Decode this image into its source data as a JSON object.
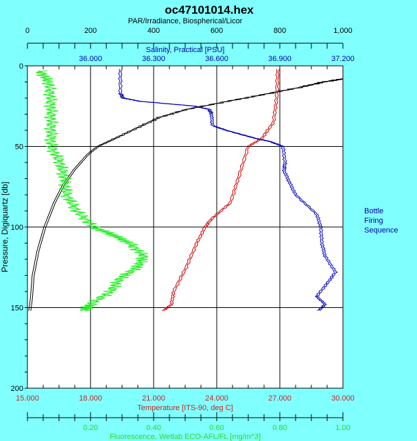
{
  "chart_data": {
    "type": "line",
    "title": "oc47101014.hex",
    "ylabel": "Pressure, Digiquartz [db]",
    "ylim": [
      0,
      200
    ],
    "yticks": [
      "0",
      "50",
      "100",
      "150",
      "200"
    ],
    "grid": true,
    "legend": {
      "lines": [
        "Bottle",
        "Firing",
        "Sequence"
      ],
      "placement": "right"
    },
    "axes": {
      "par": {
        "label": "PAR/Irradiance, Biospherical/Licor",
        "range": [
          0,
          1000
        ],
        "ticks": [
          "0",
          "200",
          "400",
          "600",
          "800",
          "1,000"
        ],
        "color": "#000000",
        "position": "top-outer"
      },
      "salinity": {
        "label": "Salinity, Practical [PSU]",
        "range": [
          35.7,
          37.2
        ],
        "ticks": [
          "36.000",
          "36.300",
          "36.600",
          "36.900",
          "37.200"
        ],
        "color": "#0000AA",
        "position": "top-inner"
      },
      "temperature": {
        "label": "Temperature [ITS-90, deg C]",
        "range": [
          15,
          30
        ],
        "ticks": [
          "15.000",
          "18.000",
          "21.000",
          "24.000",
          "27.000",
          "30.000"
        ],
        "color": "#CC2222",
        "position": "bottom-inner"
      },
      "fluorescence": {
        "label": "Fluorescence, Wetlab ECO-AFL/FL [mg/m^3]",
        "range": [
          0,
          1.0
        ],
        "ticks": [
          "0.20",
          "0.40",
          "0.60",
          "0.80",
          "1.00"
        ],
        "color": "#22DD22",
        "position": "bottom-outer"
      }
    },
    "series": [
      {
        "name": "Temperature",
        "axis": "temperature",
        "color": "#CC0000",
        "p": [
          2,
          20,
          35,
          45,
          50,
          70,
          85,
          95,
          100,
          110,
          125,
          140,
          148,
          152
        ],
        "x": [
          26.85,
          26.8,
          26.65,
          26.1,
          25.45,
          24.97,
          24.6,
          23.7,
          23.4,
          23.0,
          22.5,
          21.9,
          21.8,
          21.4
        ]
      },
      {
        "name": "Salinity",
        "axis": "salinity",
        "color": "#0000BB",
        "p": [
          2,
          17,
          20,
          22,
          25,
          27,
          30,
          37,
          40,
          45,
          47,
          50,
          60,
          65,
          72,
          80,
          92,
          100,
          110,
          118,
          128,
          135,
          143,
          148,
          152
        ],
        "x": [
          36.137,
          36.137,
          36.15,
          36.23,
          36.49,
          36.56,
          36.57,
          36.575,
          36.64,
          36.78,
          36.85,
          36.91,
          36.92,
          36.915,
          36.94,
          36.97,
          37.07,
          37.09,
          37.095,
          37.11,
          37.16,
          37.12,
          37.07,
          37.11,
          37.08
        ]
      },
      {
        "name": "PAR/Irradiance",
        "axis": "par",
        "color": "#000000",
        "p": [
          8,
          10,
          13,
          18,
          22,
          27,
          32,
          38,
          45,
          50,
          55,
          65,
          75,
          85,
          100,
          115,
          130,
          145,
          152
        ],
        "x": [
          1000,
          935,
          870,
          740,
          632,
          502,
          415,
          350,
          275,
          220,
          188,
          143,
          108,
          82,
          52,
          30,
          15,
          9,
          4
        ]
      },
      {
        "name": "Fluorescence",
        "axis": "fluorescence",
        "color": "#22EE22",
        "p": [
          3,
          10,
          20,
          30,
          40,
          50,
          60,
          70,
          80,
          90,
          100,
          105,
          110,
          118,
          125,
          132,
          140,
          148,
          152
        ],
        "x": [
          0.036,
          0.064,
          0.07,
          0.072,
          0.072,
          0.072,
          0.1,
          0.115,
          0.12,
          0.153,
          0.206,
          0.27,
          0.32,
          0.366,
          0.345,
          0.29,
          0.26,
          0.196,
          0.175
        ]
      }
    ]
  }
}
